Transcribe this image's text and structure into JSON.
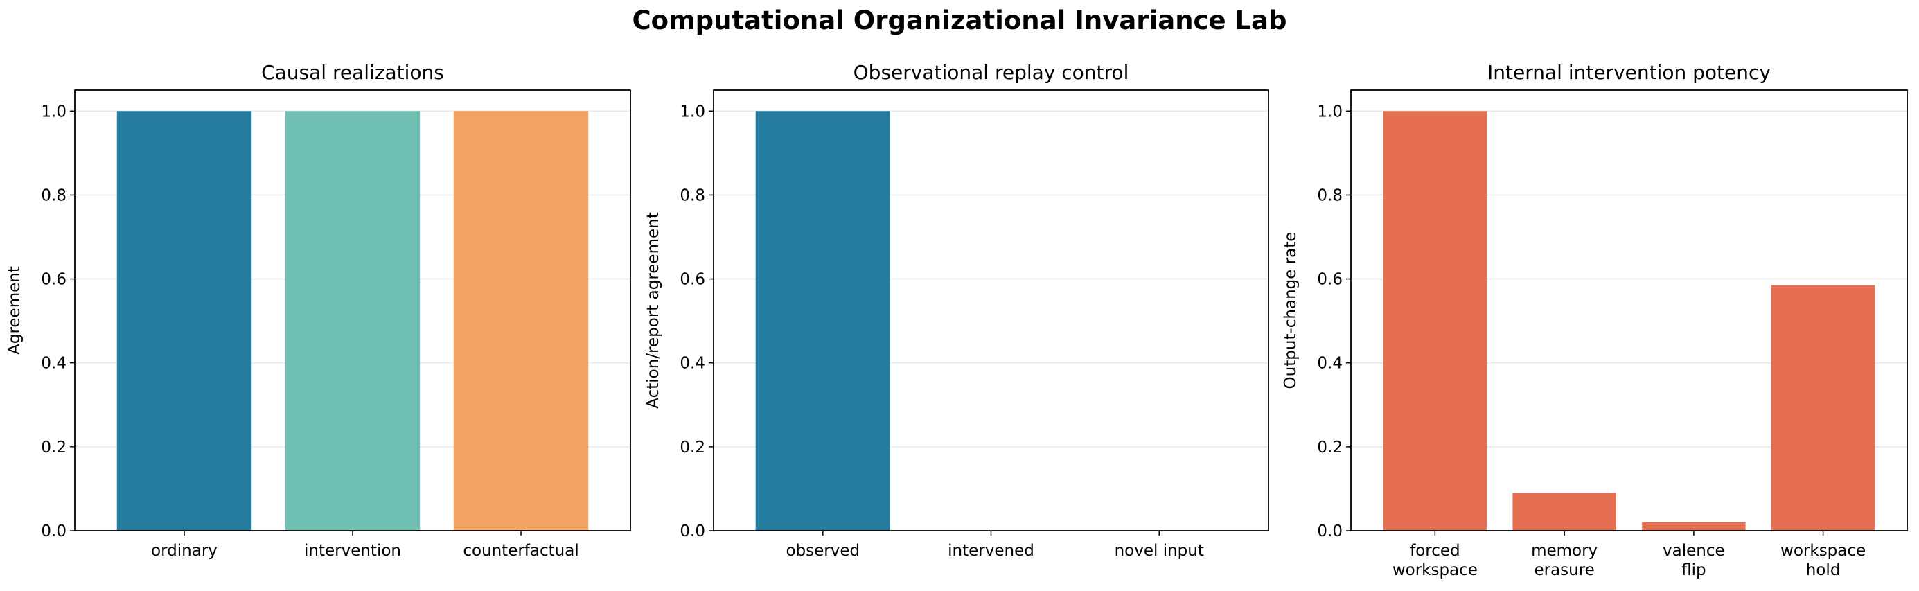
{
  "figure": {
    "title": "Computational Organizational Invariance Lab"
  },
  "chart_data": [
    {
      "type": "bar",
      "title": "Causal realizations",
      "xlabel": "",
      "ylabel": "Agreement",
      "categories": [
        "ordinary",
        "intervention",
        "counterfactual"
      ],
      "values": [
        1.0,
        1.0,
        1.0
      ],
      "colors": [
        "#247c9f",
        "#70c1b3",
        "#f3a361"
      ],
      "ylim": [
        0,
        1.05
      ],
      "yticks": [
        "0.0",
        "0.2",
        "0.4",
        "0.6",
        "0.8",
        "1.0"
      ],
      "grid": "y"
    },
    {
      "type": "bar",
      "title": "Observational replay control",
      "xlabel": "",
      "ylabel": "Action/report agreement",
      "categories": [
        "observed",
        "intervened",
        "novel input"
      ],
      "values": [
        1.0,
        0.0,
        0.0
      ],
      "colors": [
        "#247c9f",
        "#247c9f",
        "#247c9f"
      ],
      "ylim": [
        0,
        1.05
      ],
      "yticks": [
        "0.0",
        "0.2",
        "0.4",
        "0.6",
        "0.8",
        "1.0"
      ],
      "grid": "y"
    },
    {
      "type": "bar",
      "title": "Internal intervention potency",
      "xlabel": "",
      "ylabel": "Output-change rate",
      "categories": [
        "forced\nworkspace",
        "memory\nerasure",
        "valence\nflip",
        "workspace\nhold"
      ],
      "values": [
        1.0,
        0.09,
        0.02,
        0.585
      ],
      "colors": [
        "#e66f51",
        "#e66f51",
        "#e66f51",
        "#e66f51"
      ],
      "ylim": [
        0,
        1.05
      ],
      "yticks": [
        "0.0",
        "0.2",
        "0.4",
        "0.6",
        "0.8",
        "1.0"
      ],
      "grid": "y"
    }
  ]
}
